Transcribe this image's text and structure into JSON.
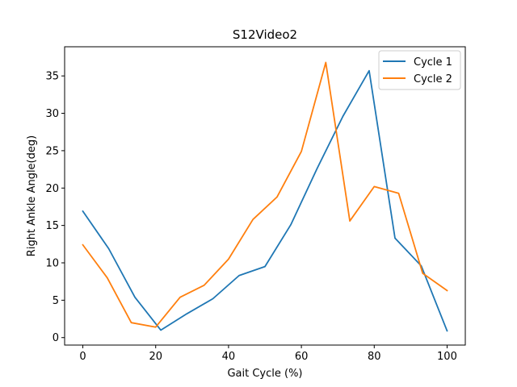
{
  "chart_data": {
    "type": "line",
    "title": "S12Video2",
    "xlabel": "Gait Cycle (%)",
    "ylabel": "Right Ankle Angle(deg)",
    "xlim": [
      -5,
      105
    ],
    "ylim": [
      -1,
      38.9
    ],
    "xticks": [
      0,
      20,
      40,
      60,
      80,
      100
    ],
    "yticks": [
      0,
      5,
      10,
      15,
      20,
      25,
      30,
      35
    ],
    "grid": false,
    "legend_position": "top-right",
    "series": [
      {
        "name": "Cycle 1",
        "color": "#1f77b4",
        "x": [
          0,
          7.1,
          14.3,
          21.4,
          28.6,
          35.7,
          42.9,
          50.0,
          57.1,
          64.3,
          71.4,
          78.6,
          85.7,
          92.9,
          100
        ],
        "y": [
          16.9,
          11.9,
          5.4,
          1.0,
          3.2,
          5.2,
          8.3,
          9.5,
          15.1,
          22.6,
          29.6,
          35.7,
          13.3,
          9.6,
          0.9
        ]
      },
      {
        "name": "Cycle 2",
        "color": "#ff7f0e",
        "x": [
          0,
          6.7,
          13.3,
          20.0,
          26.7,
          33.3,
          40.0,
          46.7,
          53.3,
          60.0,
          66.7,
          73.3,
          80.0,
          86.7,
          93.3,
          100
        ],
        "y": [
          12.4,
          8.0,
          2.0,
          1.4,
          5.4,
          7.0,
          10.5,
          15.8,
          18.8,
          24.9,
          36.8,
          15.6,
          20.2,
          19.3,
          8.6,
          6.3
        ]
      }
    ]
  }
}
